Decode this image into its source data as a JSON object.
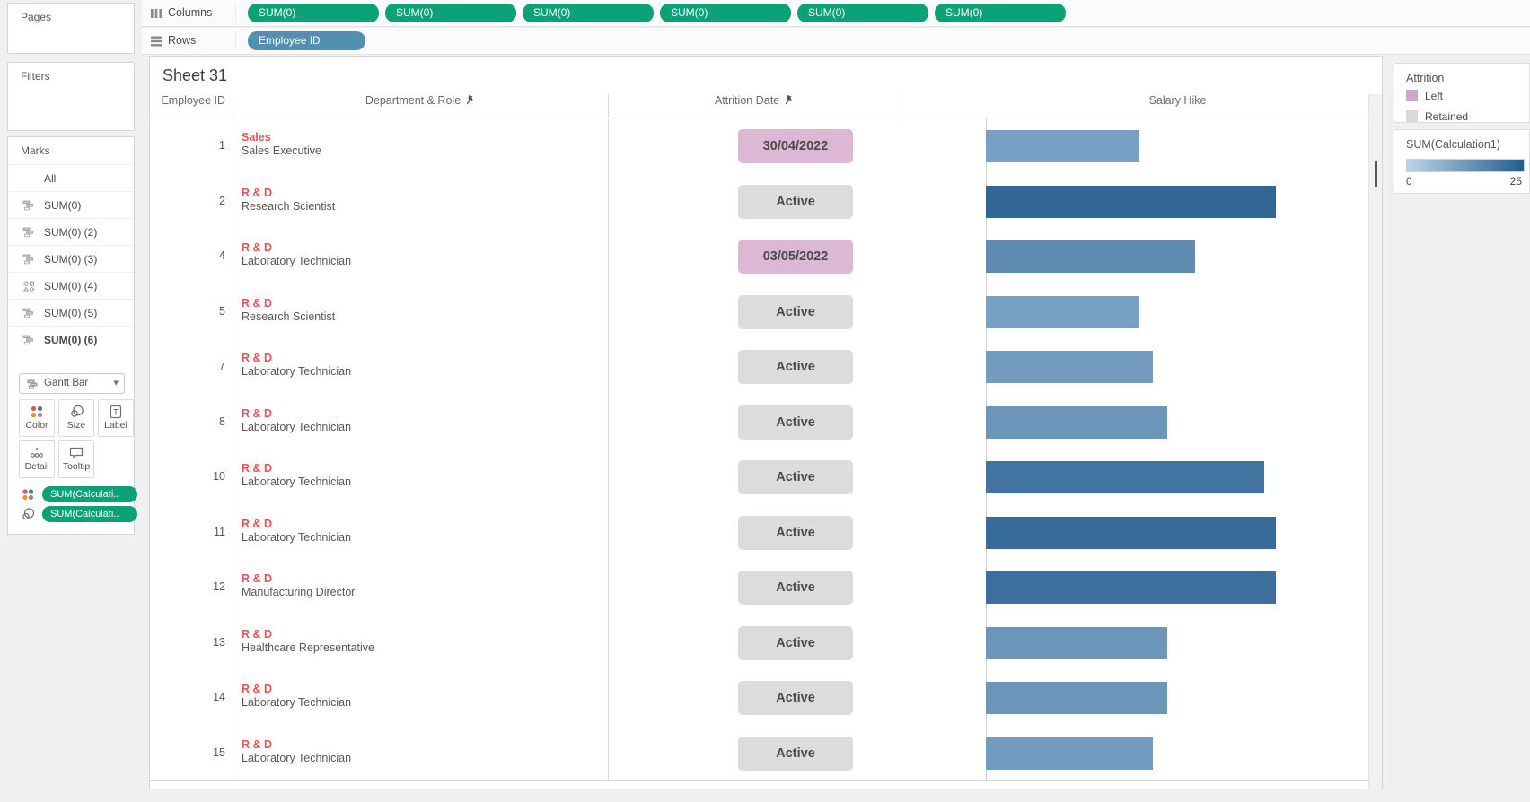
{
  "shelves": {
    "columns": {
      "label": "Columns",
      "pills": [
        "SUM(0)",
        "SUM(0)",
        "SUM(0)",
        "SUM(0)",
        "SUM(0)",
        "SUM(0)"
      ]
    },
    "rows": {
      "label": "Rows",
      "pills": [
        "Employee ID"
      ]
    }
  },
  "cards": {
    "pages": "Pages",
    "filters": "Filters",
    "marks": "Marks"
  },
  "marks": {
    "items": [
      {
        "label": "All",
        "icon": "none"
      },
      {
        "label": "SUM(0)",
        "icon": "gantt"
      },
      {
        "label": "SUM(0) (2)",
        "icon": "gantt"
      },
      {
        "label": "SUM(0) (3)",
        "icon": "gantt"
      },
      {
        "label": "SUM(0) (4)",
        "icon": "shapes"
      },
      {
        "label": "SUM(0) (5)",
        "icon": "gantt"
      },
      {
        "label": "SUM(0) (6)",
        "icon": "gantt"
      }
    ],
    "selected": "SUM(0) (6)",
    "mark_type": "Gantt Bar",
    "buttons": {
      "color": "Color",
      "size": "Size",
      "label": "Label",
      "detail": "Detail",
      "tooltip": "Tooltip"
    },
    "encoding_pills": [
      {
        "icon": "color",
        "label": "SUM(Calculati.."
      },
      {
        "icon": "size",
        "label": "SUM(Calculati.."
      }
    ]
  },
  "sheet": {
    "title": "Sheet 31",
    "columns": [
      {
        "label": "Employee ID",
        "pinned": false
      },
      {
        "label": "Department & Role",
        "pinned": true
      },
      {
        "label": "Attrition Date",
        "pinned": true
      },
      {
        "label": "Salary Hike",
        "pinned": false
      }
    ],
    "rows": [
      {
        "id": "1",
        "department": "Sales",
        "role": "Sales Executive",
        "status": "30/04/2022",
        "status_type": "left",
        "salary_hike": 11
      },
      {
        "id": "2",
        "department": "R & D",
        "role": "Research Scientist",
        "status": "Active",
        "status_type": "retained",
        "salary_hike": 23
      },
      {
        "id": "4",
        "department": "R & D",
        "role": "Laboratory Technician",
        "status": "03/05/2022",
        "status_type": "left",
        "salary_hike": 15
      },
      {
        "id": "5",
        "department": "R & D",
        "role": "Research Scientist",
        "status": "Active",
        "status_type": "retained",
        "salary_hike": 11
      },
      {
        "id": "7",
        "department": "R & D",
        "role": "Laboratory Technician",
        "status": "Active",
        "status_type": "retained",
        "salary_hike": 12
      },
      {
        "id": "8",
        "department": "R & D",
        "role": "Laboratory Technician",
        "status": "Active",
        "status_type": "retained",
        "salary_hike": 13
      },
      {
        "id": "10",
        "department": "R & D",
        "role": "Laboratory Technician",
        "status": "Active",
        "status_type": "retained",
        "salary_hike": 20
      },
      {
        "id": "11",
        "department": "R & D",
        "role": "Laboratory Technician",
        "status": "Active",
        "status_type": "retained",
        "salary_hike": 22
      },
      {
        "id": "12",
        "department": "R & D",
        "role": "Manufacturing Director",
        "status": "Active",
        "status_type": "retained",
        "salary_hike": 21
      },
      {
        "id": "13",
        "department": "R & D",
        "role": "Healthcare Representative",
        "status": "Active",
        "status_type": "retained",
        "salary_hike": 13
      },
      {
        "id": "14",
        "department": "R & D",
        "role": "Laboratory Technician",
        "status": "Active",
        "status_type": "retained",
        "salary_hike": 13
      },
      {
        "id": "15",
        "department": "R & D",
        "role": "Laboratory Technician",
        "status": "Active",
        "status_type": "retained",
        "salary_hike": 12
      }
    ]
  },
  "legends": {
    "attrition": {
      "title": "Attrition",
      "entries": [
        {
          "label": "Left",
          "color": "#d2a6c9"
        },
        {
          "label": "Retained",
          "color": "#d9d9d9"
        }
      ]
    },
    "calculation": {
      "title": "SUM(Calculation1)",
      "min": "0",
      "max": "25",
      "gradient_start": "#b9d5ea",
      "gradient_end": "#255c8e"
    }
  },
  "chart_data": {
    "type": "bar",
    "title": "Sheet 31",
    "categories": [
      "1",
      "2",
      "4",
      "5",
      "7",
      "8",
      "10",
      "11",
      "12",
      "13",
      "14",
      "15"
    ],
    "values": [
      11,
      23,
      15,
      11,
      12,
      13,
      20,
      22,
      21,
      13,
      13,
      12
    ],
    "xlabel": "Salary Hike",
    "ylabel": "Employee ID",
    "color_scale": {
      "field": "SUM(Calculation1)",
      "min": 0,
      "max": 25,
      "start": "#b9d5ea",
      "end": "#255c8e"
    },
    "legend_position": "right",
    "grid": false
  },
  "colors": {
    "pill_green": "#0ca277",
    "pill_blue": "#5290b2",
    "department_red": "#e15759",
    "badge_left": "#ddb8d4",
    "badge_retained": "#dcdcdc"
  }
}
